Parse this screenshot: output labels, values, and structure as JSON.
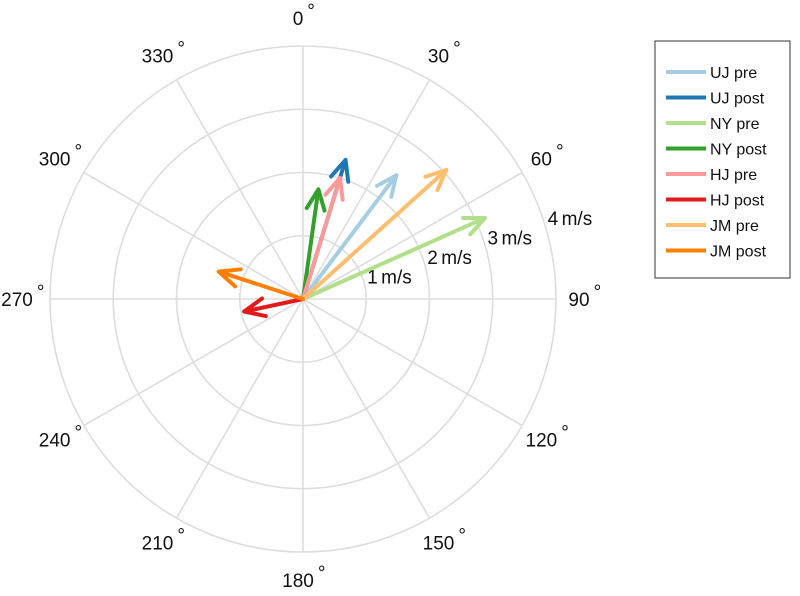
{
  "chart_data": {
    "type": "polar-vector",
    "angle_labels": [
      {
        "deg": 0,
        "text": "0"
      },
      {
        "deg": 30,
        "text": "30"
      },
      {
        "deg": 60,
        "text": "60"
      },
      {
        "deg": 90,
        "text": "90"
      },
      {
        "deg": 120,
        "text": "120"
      },
      {
        "deg": 150,
        "text": "150"
      },
      {
        "deg": 180,
        "text": "180"
      },
      {
        "deg": 210,
        "text": "210"
      },
      {
        "deg": 240,
        "text": "240"
      },
      {
        "deg": 270,
        "text": "270"
      },
      {
        "deg": 300,
        "text": "300"
      },
      {
        "deg": 330,
        "text": "330"
      }
    ],
    "degree_symbol": "°",
    "radial_ticks": [
      {
        "value": 1,
        "text": "1",
        "unit": "m/s"
      },
      {
        "value": 2,
        "text": "2",
        "unit": "m/s"
      },
      {
        "value": 3,
        "text": "3",
        "unit": "m/s"
      },
      {
        "value": 4,
        "text": "4",
        "unit": "m/s"
      }
    ],
    "rmax": 4,
    "series": [
      {
        "name": "UJ pre",
        "color": "#a6cee3",
        "angle_deg": 37,
        "magnitude": 2.45
      },
      {
        "name": "UJ post",
        "color": "#1f78b4",
        "angle_deg": 17,
        "magnitude": 2.3
      },
      {
        "name": "NY pre",
        "color": "#b2df8a",
        "angle_deg": 66,
        "magnitude": 3.15
      },
      {
        "name": "NY post",
        "color": "#33a02c",
        "angle_deg": 8,
        "magnitude": 1.75
      },
      {
        "name": "HJ pre",
        "color": "#fb9a99",
        "angle_deg": 17,
        "magnitude": 2.0
      },
      {
        "name": "HJ post",
        "color": "#e31a1c",
        "angle_deg": 258,
        "magnitude": 0.95
      },
      {
        "name": "JM pre",
        "color": "#fdbf6f",
        "angle_deg": 48,
        "magnitude": 3.05
      },
      {
        "name": "JM post",
        "color": "#ff7f00",
        "angle_deg": 288,
        "magnitude": 1.4
      }
    ],
    "grid": true,
    "legend_position": "top-right"
  }
}
